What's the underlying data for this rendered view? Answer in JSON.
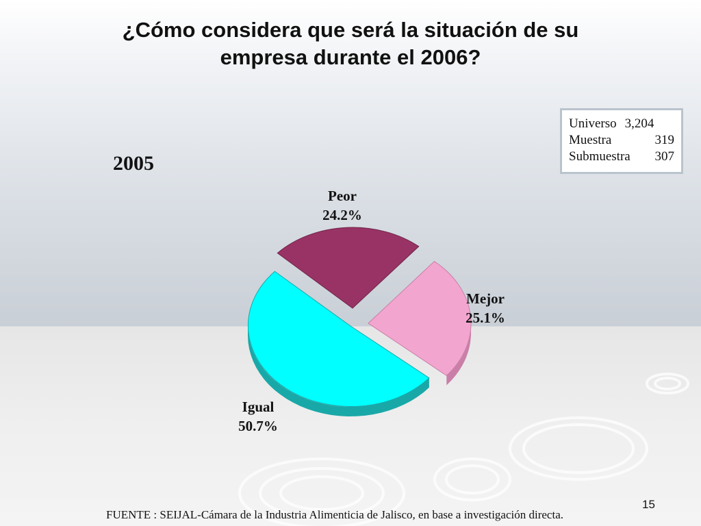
{
  "slide": {
    "title_line1": "¿Cómo considera que será la situación de su",
    "title_line2": "empresa durante el 2006?",
    "year_label": "2005",
    "sample": [
      {
        "label": "Universo",
        "value": "3,204"
      },
      {
        "label": "Muestra",
        "value": "319"
      },
      {
        "label": "Submuestra",
        "value": "307"
      }
    ],
    "footer": "FUENTE : SEIJAL-Cámara de la Industria Alimenticia de Jalisco,  en base a investigación directa.",
    "page_number": "15"
  },
  "chart_data": {
    "type": "pie",
    "title": "",
    "slices": [
      {
        "label": "Peor",
        "value": 24.2,
        "display": "24.2%",
        "color": "#993366",
        "side_color": "#6e2447"
      },
      {
        "label": "Mejor",
        "value": 25.1,
        "display": "25.1%",
        "color": "#f2a6cf",
        "side_color": "#c97fa8"
      },
      {
        "label": "Igual",
        "value": 50.7,
        "display": "50.7%",
        "color": "#00ffff",
        "side_color": "#19a8a8"
      }
    ],
    "style": "3d-exploded"
  }
}
